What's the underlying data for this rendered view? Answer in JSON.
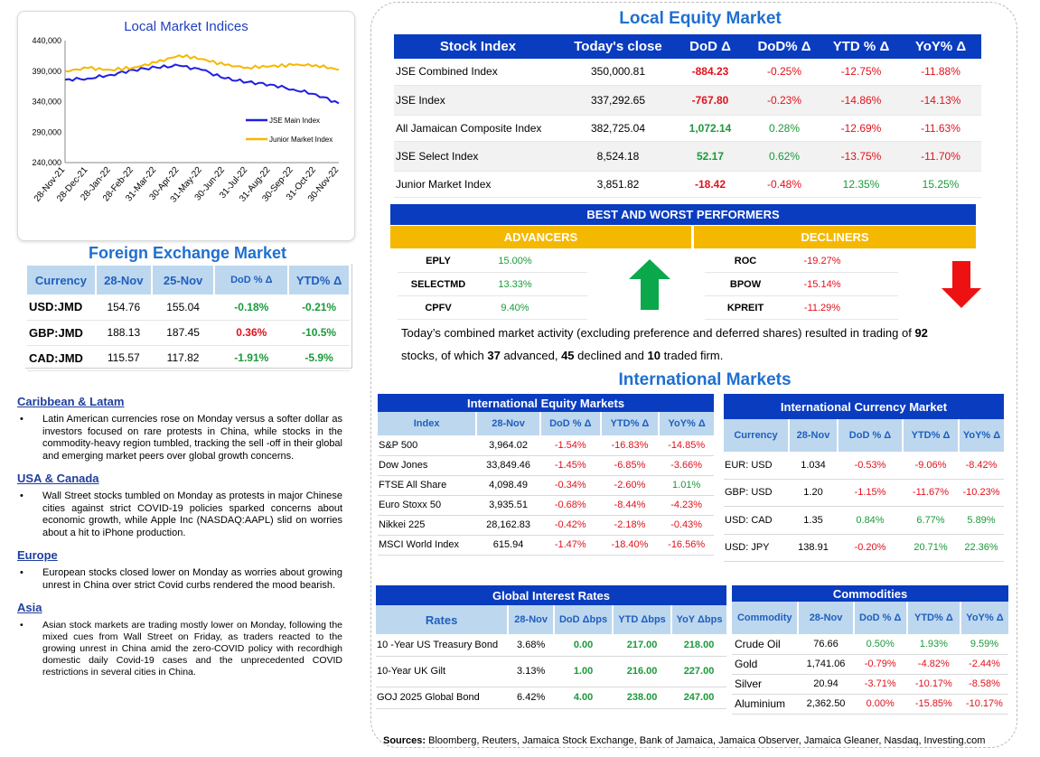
{
  "chart": {
    "title": "Local Market Indices",
    "chart_data": {
      "type": "line",
      "title": "Local Market Indices",
      "x": [
        "28-Nov-21",
        "28-Dec-21",
        "28-Jan-22",
        "28-Feb-22",
        "31-Mar-22",
        "30-Apr-22",
        "31-May-22",
        "30-Jun-22",
        "31-Jul-22",
        "31-Aug-22",
        "30-Sep-22",
        "31-Oct-22",
        "30-Nov-22"
      ],
      "ylim": [
        240000,
        440000
      ],
      "yticks": [
        "440,000",
        "390,000",
        "340,000",
        "290,000",
        "240,000"
      ],
      "series": [
        {
          "name": "JSE Main Index",
          "color": "#1f1fe0",
          "values": [
            376000,
            378000,
            384000,
            392000,
            396000,
            399000,
            392000,
            378000,
            372000,
            368000,
            360000,
            352000,
            337000
          ]
        },
        {
          "name": "Junior Market Index",
          "color": "#f5b800",
          "values": [
            390000,
            395000,
            392000,
            396000,
            404000,
            416000,
            410000,
            400000,
            396000,
            398000,
            400000,
            400000,
            392000
          ]
        }
      ]
    }
  },
  "fx": {
    "title": "Foreign Exchange Market",
    "headers": [
      "Currency",
      "28-Nov",
      "25-Nov",
      "DoD % Δ",
      "YTD% Δ"
    ],
    "rows": [
      {
        "pair": "USD:JMD",
        "cur": "154.76",
        "prev": "155.04",
        "dod": "-0.18%",
        "ytd": "-0.21%",
        "dod_c": "pos",
        "ytd_c": "pos"
      },
      {
        "pair": "GBP:JMD",
        "cur": "188.13",
        "prev": "187.45",
        "dod": "0.36%",
        "ytd": "-10.5%",
        "dod_c": "neg",
        "ytd_c": "pos"
      },
      {
        "pair": "CAD:JMD",
        "cur": "115.57",
        "prev": "117.82",
        "dod": "-1.91%",
        "ytd": "-5.9%",
        "dod_c": "pos",
        "ytd_c": "pos"
      }
    ]
  },
  "news": [
    {
      "heading": "Caribbean & Latam",
      "text": "Latin American currencies rose on Monday versus a softer dollar as investors focused on rare protests in China, while stocks in the commodity-heavy region tumbled, tracking the sell -off in their global and emerging market peers over global growth concerns."
    },
    {
      "heading": "USA & Canada",
      "text": "Wall Street stocks tumbled on Monday as protests in major Chinese cities against strict COVID-19 policies sparked concerns about economic growth, while Apple Inc (NASDAQ:AAPL) slid on worries about a hit to iPhone production."
    },
    {
      "heading": "Europe",
      "text": "European stocks closed lower on Monday as worries about growing unrest in China over strict Covid curbs rendered the mood bearish."
    },
    {
      "heading": "Asia",
      "text": "Asian stock markets are trading mostly lower on Monday, following the mixed cues from Wall Street on Friday, as traders reacted to the growing unrest in China amid the zero-COVID policy with recordhigh domestic daily Covid-19 cases and the unprecedented COVID restrictions in several cities in China."
    }
  ],
  "local_equity": {
    "title": "Local Equity Market",
    "headers": [
      "Stock Index",
      "Today's close",
      "DoD  Δ",
      "DoD% Δ",
      "YTD % Δ",
      "YoY% Δ"
    ],
    "rows": [
      {
        "name": "JSE Combined Index",
        "close": "350,000.81",
        "dod": "-884.23",
        "dodp": "-0.25%",
        "ytd": "-12.75%",
        "yoy": "-11.88%",
        "c": [
          "neg",
          "neg",
          "neg",
          "neg"
        ]
      },
      {
        "name": "JSE Index",
        "close": "337,292.65",
        "dod": "-767.80",
        "dodp": "-0.23%",
        "ytd": "-14.86%",
        "yoy": "-14.13%",
        "c": [
          "neg",
          "neg",
          "neg",
          "neg"
        ]
      },
      {
        "name": "All Jamaican Composite Index",
        "close": "382,725.04",
        "dod": "1,072.14",
        "dodp": "0.28%",
        "ytd": "-12.69%",
        "yoy": "-11.63%",
        "c": [
          "pos",
          "pos",
          "neg",
          "neg"
        ]
      },
      {
        "name": "JSE Select Index",
        "close": "8,524.18",
        "dod": "52.17",
        "dodp": "0.62%",
        "ytd": "-13.75%",
        "yoy": "-11.70%",
        "c": [
          "pos",
          "pos",
          "neg",
          "neg"
        ]
      },
      {
        "name": "Junior Market Index",
        "close": "3,851.82",
        "dod": "-18.42",
        "dodp": "-0.48%",
        "ytd": "12.35%",
        "yoy": "15.25%",
        "c": [
          "neg",
          "neg",
          "pos",
          "pos"
        ]
      }
    ]
  },
  "performers": {
    "title": "BEST AND WORST PERFORMERS",
    "advancers_label": "ADVANCERS",
    "decliners_label": "DECLINERS",
    "advancers": [
      {
        "sym": "EPLY",
        "val": "15.00%"
      },
      {
        "sym": "SELECTMD",
        "val": "13.33%"
      },
      {
        "sym": "CPFV",
        "val": "9.40%"
      }
    ],
    "decliners": [
      {
        "sym": "ROC",
        "val": "-19.27%"
      },
      {
        "sym": "BPOW",
        "val": "-15.14%"
      },
      {
        "sym": "KPREIT",
        "val": "-11.29%"
      }
    ]
  },
  "summary": {
    "line1_pre": "Today’s combined market activity (excluding preference and deferred shares) resulted in trading of ",
    "traded": "92",
    "line2_pre": "stocks, of which ",
    "advanced": "37",
    "mid1": " advanced, ",
    "declined": "45",
    "mid2": " declined and ",
    "firm": "10",
    "end": " traded firm."
  },
  "international": {
    "title": "International Markets",
    "equity": {
      "title": "International Equity Markets",
      "headers": [
        "Index",
        "28-Nov",
        "DoD % Δ",
        "YTD% Δ",
        "YoY% Δ"
      ],
      "rows": [
        {
          "name": "S&P 500",
          "val": "3,964.02",
          "dod": "-1.54%",
          "ytd": "-16.83%",
          "yoy": "-14.85%",
          "c": [
            "neg",
            "neg",
            "neg"
          ]
        },
        {
          "name": "Dow Jones",
          "val": "33,849.46",
          "dod": "-1.45%",
          "ytd": "-6.85%",
          "yoy": "-3.66%",
          "c": [
            "neg",
            "neg",
            "neg"
          ]
        },
        {
          "name": "FTSE All Share",
          "val": "4,098.49",
          "dod": "-0.34%",
          "ytd": "-2.60%",
          "yoy": "1.01%",
          "c": [
            "neg",
            "neg",
            "pos"
          ]
        },
        {
          "name": "Euro Stoxx 50",
          "val": "3,935.51",
          "dod": "-0.68%",
          "ytd": "-8.44%",
          "yoy": "-4.23%",
          "c": [
            "neg",
            "neg",
            "neg"
          ]
        },
        {
          "name": "Nikkei 225",
          "val": "28,162.83",
          "dod": "-0.42%",
          "ytd": "-2.18%",
          "yoy": "-0.43%",
          "c": [
            "neg",
            "neg",
            "neg"
          ]
        },
        {
          "name": "MSCI World Index",
          "val": "615.94",
          "dod": "-1.47%",
          "ytd": "-18.40%",
          "yoy": "-16.56%",
          "c": [
            "neg",
            "neg",
            "neg"
          ]
        }
      ]
    },
    "currency": {
      "title": "International Currency Market",
      "headers": [
        "Currency",
        "28-Nov",
        "DoD % Δ",
        "YTD% Δ",
        "YoY% Δ"
      ],
      "rows": [
        {
          "name": "EUR: USD",
          "val": "1.034",
          "dod": "-0.53%",
          "ytd": "-9.06%",
          "yoy": "-8.42%",
          "c": [
            "neg",
            "neg",
            "neg"
          ]
        },
        {
          "name": "GBP: USD",
          "val": "1.20",
          "dod": "-1.15%",
          "ytd": "-11.67%",
          "yoy": "-10.23%",
          "c": [
            "neg",
            "neg",
            "neg"
          ]
        },
        {
          "name": "USD: CAD",
          "val": "1.35",
          "dod": "0.84%",
          "ytd": "6.77%",
          "yoy": "5.89%",
          "c": [
            "pos",
            "pos",
            "pos"
          ]
        },
        {
          "name": "USD: JPY",
          "val": "138.91",
          "dod": "-0.20%",
          "ytd": "20.71%",
          "yoy": "22.36%",
          "c": [
            "neg",
            "pos",
            "pos"
          ]
        }
      ]
    },
    "rates": {
      "title": "Global Interest Rates",
      "headers": [
        "Rates",
        "28-Nov",
        "DoD Δbps",
        "YTD Δbps",
        "YoY Δbps"
      ],
      "rows": [
        {
          "name": "10 -Year US Treasury Bond",
          "val": "3.68%",
          "dod": "0.00",
          "ytd": "217.00",
          "yoy": "218.00"
        },
        {
          "name": "10-Year UK Gilt",
          "val": "3.13%",
          "dod": "1.00",
          "ytd": "216.00",
          "yoy": "227.00"
        },
        {
          "name": "GOJ 2025 Global Bond",
          "val": "6.42%",
          "dod": "4.00",
          "ytd": "238.00",
          "yoy": "247.00"
        }
      ]
    },
    "commodities": {
      "title": "Commodities",
      "headers": [
        "Commodity",
        "28-Nov",
        "DoD % Δ",
        "YTD% Δ",
        "YoY% Δ"
      ],
      "rows": [
        {
          "name": "Crude Oil",
          "val": "76.66",
          "dod": "0.50%",
          "ytd": "1.93%",
          "yoy": "9.59%",
          "c": [
            "pos",
            "pos",
            "pos"
          ]
        },
        {
          "name": "Gold",
          "val": "1,741.06",
          "dod": "-0.79%",
          "ytd": "-4.82%",
          "yoy": "-2.44%",
          "c": [
            "neg",
            "neg",
            "neg"
          ]
        },
        {
          "name": "Silver",
          "val": "20.94",
          "dod": "-3.71%",
          "ytd": "-10.17%",
          "yoy": "-8.58%",
          "c": [
            "neg",
            "neg",
            "neg"
          ]
        },
        {
          "name": "Aluminium",
          "val": "2,362.50",
          "dod": "0.00%",
          "ytd": "-15.85%",
          "yoy": "-10.17%",
          "c": [
            "neg",
            "neg",
            "neg"
          ]
        }
      ]
    }
  },
  "sources": {
    "label": "Sources:",
    "text": " Bloomberg, Reuters, Jamaica Stock Exchange, Bank of Jamaica, Jamaica Observer, Jamaica Gleaner, Nasdaq, Investing.com"
  },
  "colors": {
    "pos": "#1a9a3a",
    "neg": "#e0121b",
    "header_blue": "#0a3cc0",
    "accent_gold": "#f5b800"
  }
}
